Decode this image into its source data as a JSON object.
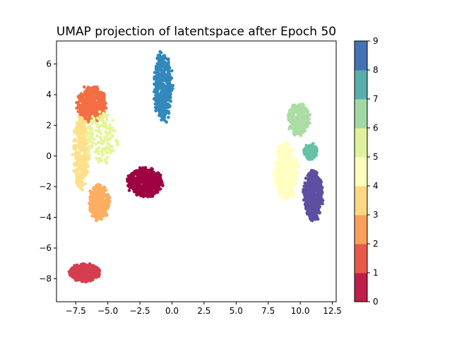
{
  "chart_data": {
    "type": "scatter",
    "title": "UMAP projection of latentspace after Epoch 50",
    "xlabel": "",
    "ylabel": "",
    "xlim": [
      -9.0,
      12.8
    ],
    "ylim": [
      -9.5,
      7.5
    ],
    "x_ticks": [
      -7.5,
      -5.0,
      -2.5,
      0.0,
      2.5,
      5.0,
      7.5,
      10.0,
      12.5
    ],
    "x_tick_labels": [
      "−7.5",
      "−5.0",
      "−2.5",
      "0.0",
      "2.5",
      "5.0",
      "7.5",
      "10.0",
      "12.5"
    ],
    "y_ticks": [
      -8,
      -6,
      -4,
      -2,
      0,
      2,
      4,
      6
    ],
    "y_tick_labels": [
      "−8",
      "−6",
      "−4",
      "−2",
      "0",
      "2",
      "4",
      "6"
    ],
    "grid": false,
    "colorbar": {
      "min": 0,
      "max": 9,
      "ticks": [
        "0",
        "1",
        "2",
        "3",
        "4",
        "5",
        "6",
        "7",
        "8",
        "9"
      ],
      "colors": [
        "#be1e47",
        "#e55a49",
        "#f9a05a",
        "#fdd783",
        "#fefebd",
        "#e0f29c",
        "#a2d8a3",
        "#57aeac",
        "#4473b5"
      ]
    },
    "clusters": [
      {
        "label": 0,
        "color": "#9e0142",
        "cx": -2.1,
        "cy": -1.7,
        "rx": 1.3,
        "ry": 0.9,
        "n": 520
      },
      {
        "label": 1,
        "color": "#d53e4f",
        "cx": -6.8,
        "cy": -7.6,
        "rx": 1.1,
        "ry": 0.55,
        "n": 560
      },
      {
        "label": 2,
        "color": "#f46d43",
        "cx": -6.3,
        "cy": 3.4,
        "rx": 1.1,
        "ry": 1.1,
        "n": 420
      },
      {
        "label": 3,
        "color": "#fdae61",
        "cx": -5.7,
        "cy": -3.0,
        "rx": 0.8,
        "ry": 1.1,
        "n": 340
      },
      {
        "label": 4,
        "color": "#fee08b",
        "cx": -7.1,
        "cy": 0.3,
        "rx": 0.6,
        "ry": 2.3,
        "n": 320
      },
      {
        "label": 5,
        "color": "#ffffbf",
        "cx": 8.9,
        "cy": -1.0,
        "rx": 0.9,
        "ry": 1.8,
        "n": 380
      },
      {
        "label": 6,
        "color": "#e6f598",
        "cx": -5.5,
        "cy": 1.2,
        "rx": 1.2,
        "ry": 1.6,
        "n": 160
      },
      {
        "label": 7,
        "color": "#abdda4",
        "cx": 9.9,
        "cy": 2.4,
        "rx": 0.8,
        "ry": 1.0,
        "n": 300
      },
      {
        "label": 8,
        "color": "#66c2a5",
        "cx": 10.8,
        "cy": 0.3,
        "rx": 0.5,
        "ry": 0.5,
        "n": 140
      },
      {
        "label": 9,
        "color": "#3288bd",
        "cx": -0.7,
        "cy": 4.5,
        "rx": 0.7,
        "ry": 2.2,
        "n": 420
      },
      {
        "label": 10,
        "color": "#5e4fa2",
        "cx": 11.0,
        "cy": -2.6,
        "rx": 0.7,
        "ry": 1.5,
        "n": 520
      }
    ]
  }
}
